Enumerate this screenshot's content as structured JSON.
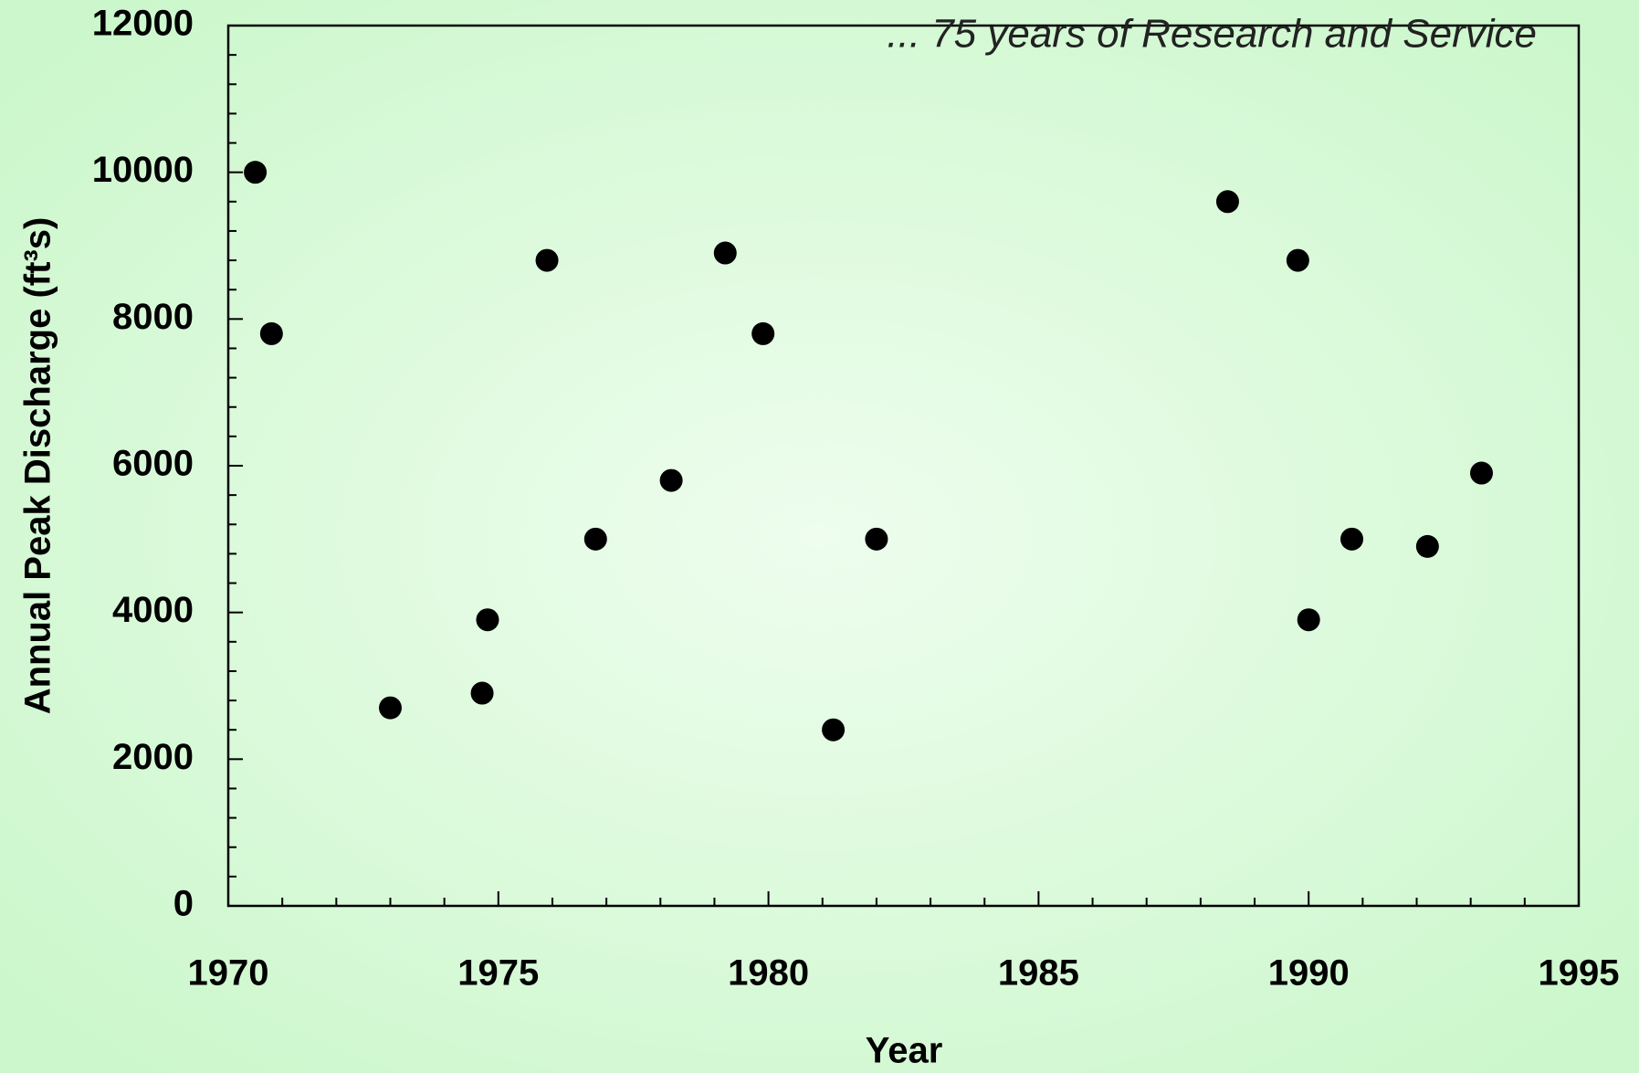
{
  "chart_data": {
    "type": "scatter",
    "annotation": "... 75 years of Research and Service",
    "x_label": "Year",
    "y_label": "Annual Peak Discharge (ft³s)",
    "x": [
      1970.5,
      1970.8,
      1973.0,
      1974.7,
      1974.8,
      1975.9,
      1976.8,
      1978.2,
      1979.2,
      1979.9,
      1981.2,
      1982.0,
      1988.5,
      1989.8,
      1990.0,
      1990.8,
      1992.2,
      1993.2
    ],
    "values": [
      10000,
      7800,
      2700,
      2900,
      3900,
      8800,
      5000,
      5800,
      8900,
      7800,
      2400,
      5000,
      9600,
      8800,
      3900,
      5000,
      4900,
      5900
    ],
    "color": "#000000",
    "xlim": [
      1970,
      1995
    ],
    "xticks": [
      1970,
      1975,
      1980,
      1985,
      1990,
      1995
    ],
    "xminorticks": [
      1971,
      1972,
      1973,
      1974,
      1976,
      1977,
      1978,
      1979,
      1981,
      1982,
      1983,
      1984,
      1986,
      1987,
      1988,
      1989,
      1991,
      1992,
      1993,
      1994
    ],
    "ylim": [
      0,
      12000
    ],
    "yticks": [
      0,
      2000,
      4000,
      6000,
      8000,
      10000,
      12000
    ],
    "yminorticks": [
      400,
      800,
      1200,
      1600,
      2400,
      2800,
      3200,
      3600,
      4400,
      4800,
      5200,
      5600,
      6400,
      6800,
      7200,
      7600,
      8400,
      8800,
      9200,
      9600,
      10400,
      10800,
      11200,
      11600
    ],
    "grid": false
  }
}
